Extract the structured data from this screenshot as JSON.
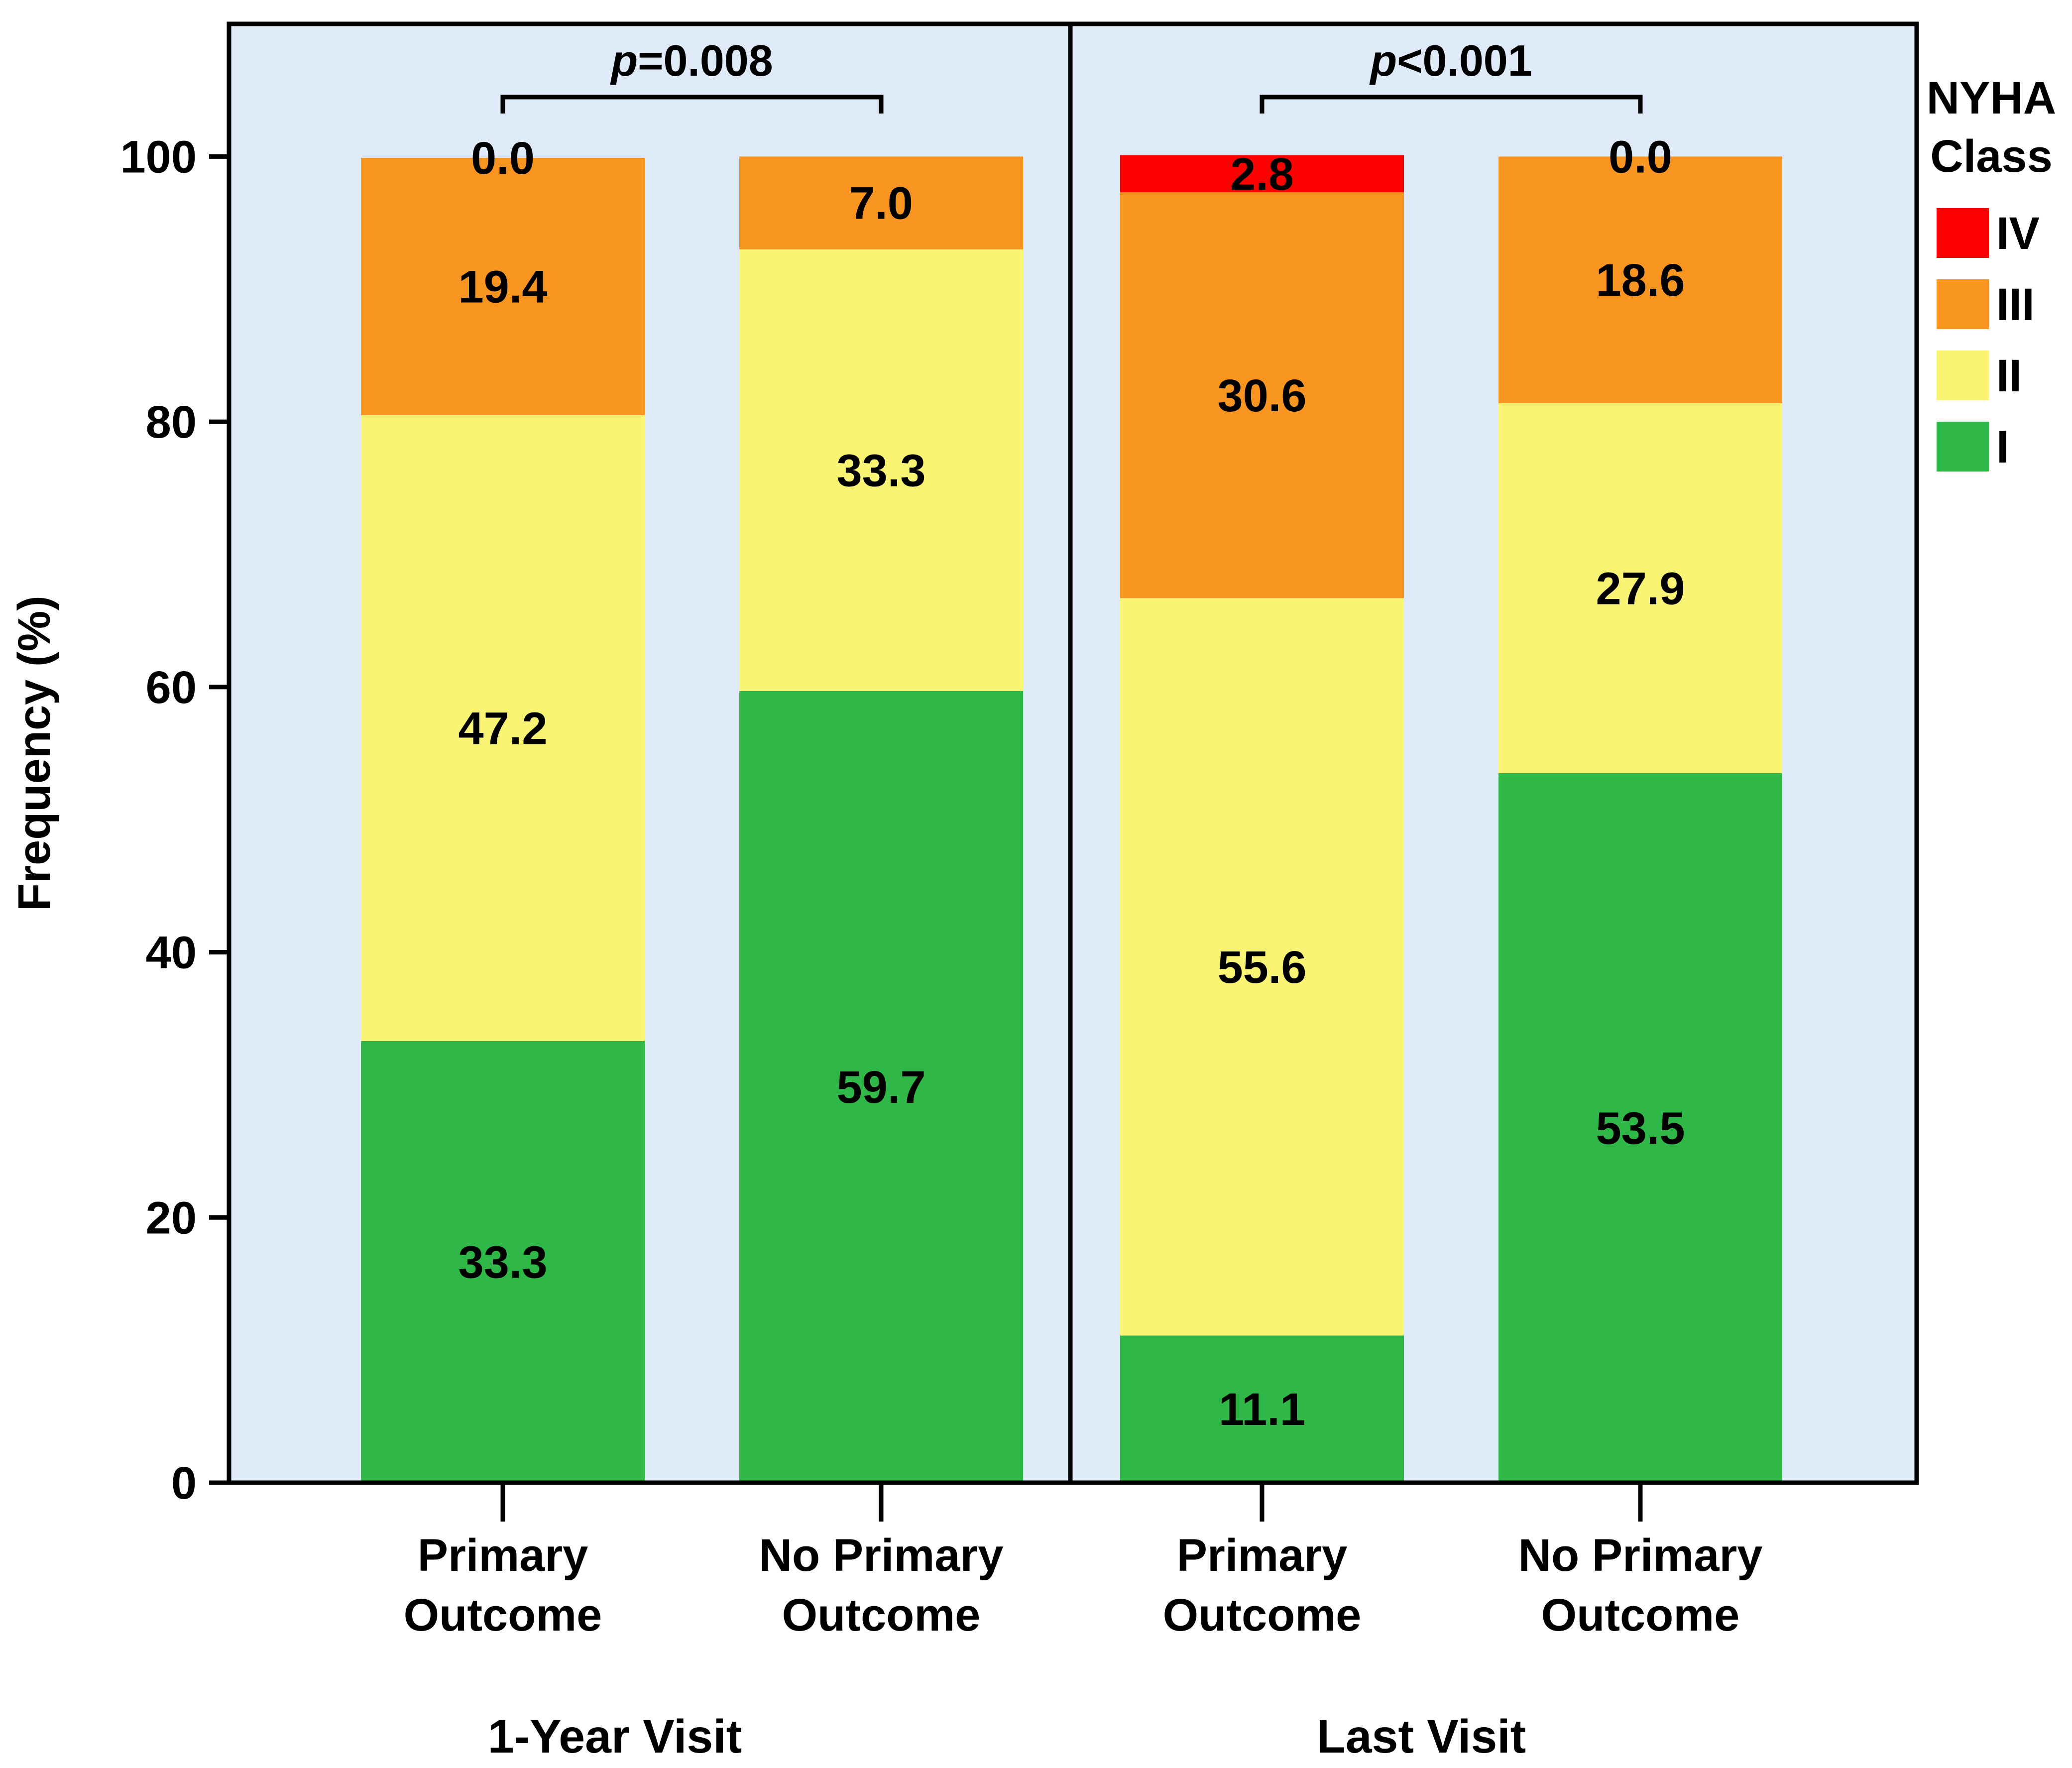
{
  "chart_data": {
    "type": "bar",
    "stacked": true,
    "ylabel": "Frequency (%)",
    "ylim": [
      0,
      110
    ],
    "yticks": [
      "0",
      "20",
      "40",
      "60",
      "80",
      "100"
    ],
    "panels": [
      {
        "label": "1-Year Visit",
        "p_value_prefix": "p",
        "p_value_rest": "=0.008",
        "groups": [
          {
            "label_line1": "Primary",
            "label_line2": "Outcome",
            "values": {
              "I": 33.3,
              "II": 47.2,
              "III": 19.4,
              "IV": 0.0
            },
            "labels": {
              "I": "33.3",
              "II": "47.2",
              "III": "19.4",
              "IV": "0.0"
            }
          },
          {
            "label_line1": "No Primary",
            "label_line2": "Outcome",
            "values": {
              "I": 59.7,
              "II": 33.3,
              "III": 7.0,
              "IV": 0.0
            },
            "labels": {
              "I": "59.7",
              "II": "33.3",
              "III": "7.0"
            }
          }
        ]
      },
      {
        "label": "Last Visit",
        "p_value_prefix": "p",
        "p_value_rest": "<0.001",
        "groups": [
          {
            "label_line1": "Primary",
            "label_line2": "Outcome",
            "values": {
              "I": 11.1,
              "II": 55.6,
              "III": 30.6,
              "IV": 2.8
            },
            "labels": {
              "I": "11.1",
              "II": "55.6",
              "III": "30.6",
              "IV": "2.8"
            }
          },
          {
            "label_line1": "No Primary",
            "label_line2": "Outcome",
            "values": {
              "I": 53.5,
              "II": 27.9,
              "III": 18.6,
              "IV": 0.0
            },
            "labels": {
              "I": "53.5",
              "II": "27.9",
              "III": "18.6",
              "IV": "0.0"
            }
          }
        ]
      }
    ],
    "legend": {
      "title_line1": "NYHA",
      "title_line2": "Class",
      "position": "right",
      "items": [
        {
          "key": "IV",
          "label": "IV",
          "color": "#fd0000"
        },
        {
          "key": "III",
          "label": "III",
          "color": "#f79520"
        },
        {
          "key": "II",
          "label": "II",
          "color": "#faf474"
        },
        {
          "key": "I",
          "label": "I",
          "color": "#2fb747"
        }
      ]
    },
    "colors": {
      "plot_background": "#dfeaf8",
      "axis": "#000000"
    }
  }
}
